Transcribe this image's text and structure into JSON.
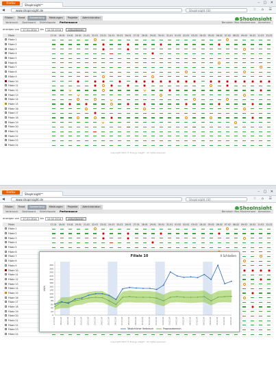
{
  "browser": {
    "menu_label": "Firefox",
    "tab_title": "ShopInsight™",
    "url": "www.shopinsight.de",
    "search_placeholder": "ShopInsight (SI)",
    "window_controls": "– ▢ ✕"
  },
  "app": {
    "logo": "ShopInsight",
    "nav": [
      "Filialen",
      "Trend",
      "Auswertung",
      "Meldungen",
      "Projekte",
      "Administration"
    ],
    "nav_active": 2,
    "subnav": [
      "Verbrauch",
      "Dashboard",
      "Störfallquote",
      "Performance"
    ],
    "subnav_active": 3,
    "user_label": "Benutzer: Max Mustermann",
    "logout_label": "Abmelden",
    "date_from_label": "anzeigen von",
    "date_from": "17.01.2014",
    "date_to_label": "bis",
    "date_to": "12.02.2014",
    "update_button": "aktualisieren",
    "table_header_name": "Filiale",
    "dates": [
      "17.01",
      "18.01",
      "19.01",
      "20.01",
      "21.01",
      "22.01",
      "23.01",
      "24.01",
      "25.01",
      "26.01",
      "27.01",
      "28.01",
      "29.01",
      "30.01",
      "31.01",
      "01.02",
      "02.02",
      "03.02",
      "04.02",
      "05.02",
      "06.02",
      "07.02",
      "08.02",
      "09.02",
      "10.02",
      "11.02",
      "12.02"
    ],
    "rows": [
      {
        "name": "Filiale 1",
        "flag": "",
        "cells": "gggggwgggggggggggggggwggggg"
      },
      {
        "name": "Filiale 2",
        "flag": "",
        "cells": "ggggggcggcgggcggggggcgggggg"
      },
      {
        "name": "Filiale 3",
        "flag": "",
        "cells": "ggggggcggcgggggggggggggwggg"
      },
      {
        "name": "Filiale 4",
        "flag": "",
        "cells": "gggggggrggggcgggggggggggggg"
      },
      {
        "name": "Filiale 5",
        "flag": "",
        "cells": "ggggggggggggggggggggggggggg"
      },
      {
        "name": "Filiale 6",
        "flag": "",
        "cells": "ggggggggggggggggggggwgggggg"
      },
      {
        "name": "Filiale 7",
        "flag": "",
        "cells": "gggggggggggggggggggggggggwg"
      },
      {
        "name": "Filiale 8",
        "flag": "",
        "cells": "ggggggggggggggggwggggggwggg"
      },
      {
        "name": "Filiale 9",
        "flag": "",
        "cells": "ggggggwgggggwgggggggggggggg"
      },
      {
        "name": "Filiale 10",
        "flag": "red",
        "cells": "gggcgccgcgccccccccgcccccccc"
      },
      {
        "name": "Filiale 11",
        "flag": "",
        "cells": "gggggcwcgcgcgggggggwgcggggg"
      },
      {
        "name": "Filiale 12",
        "flag": "",
        "cells": "ggugggwgggguggcggggggggggcg"
      },
      {
        "name": "Filiale 13",
        "flag": "",
        "cells": "gggugggggggggwgggggggggwggg"
      },
      {
        "name": "Filiale 14",
        "flag": "",
        "cells": "gggwgwgugggggggggwgggwggggg"
      },
      {
        "name": "Filiale 15",
        "flag": "orange",
        "cells": "ggcgcggwgcgcggggcgggcgggcgg"
      },
      {
        "name": "Filiale 16",
        "flag": "",
        "cells": "ggggwggggggwgggggggggggwggg"
      },
      {
        "name": "Filiale 17",
        "flag": "",
        "cells": "gggggcggggggggggggggggggggg"
      },
      {
        "name": "Filiale 18",
        "flag": "",
        "cells": "gggwgwgcggggggggwggwggggcgg"
      },
      {
        "name": "Filiale 19",
        "flag": "",
        "cells": "ggggggugggggggggggggggwgggg"
      },
      {
        "name": "Filiale 20",
        "flag": "",
        "cells": "gggggggggrgggggggrggggggggg"
      },
      {
        "name": "Filiale 21",
        "flag": "",
        "cells": "gggggrggggggggggggggggggggg"
      },
      {
        "name": "Filiale 22",
        "flag": "",
        "cells": "ggggggggggggggggggggggggggg"
      },
      {
        "name": "Filiale 23",
        "flag": "",
        "cells": "ggggggggggggggggggggggggggg"
      },
      {
        "name": "Filiale 24",
        "flag": "",
        "cells": "ggggggggggggggggggggggggggg"
      }
    ],
    "footer": "Copyright 2014 © Energy Insight · All rights reserved"
  },
  "modal": {
    "title": "Filiale 10",
    "close_label": "X Schließen"
  },
  "chart_data": {
    "type": "line",
    "title": "Filiale 10",
    "ylabel": "kWh",
    "ylim": [
      0,
      300
    ],
    "yticks": [
      0,
      20,
      40,
      60,
      80,
      100,
      120,
      140,
      160,
      180,
      200,
      220,
      240,
      260,
      280
    ],
    "x": [
      "17.01.14",
      "18.01.14",
      "19.01.14",
      "20.01.14",
      "21.01.14",
      "22.01.14",
      "23.01.14",
      "24.01.14",
      "25.01.14",
      "26.01.14",
      "27.01.14",
      "28.01.14",
      "29.01.14",
      "30.01.14",
      "31.01.14",
      "01.02.14",
      "02.02.14",
      "03.02.14",
      "04.02.14",
      "05.02.14",
      "06.02.14",
      "07.02.14",
      "08.02.14",
      "09.02.14",
      "10.02.14",
      "11.02.14",
      "12.02.14"
    ],
    "weekend_bands": [
      [
        "18.01.14",
        "19.01.14"
      ],
      [
        "25.01.14",
        "26.01.14"
      ],
      [
        "01.02.14",
        "02.02.14"
      ],
      [
        "08.02.14",
        "09.02.14"
      ]
    ],
    "series": [
      {
        "name": "Tatsächlicher Verbrauch",
        "color": "#2d6bb8",
        "values": [
          62,
          75,
          66,
          90,
          96,
          112,
          120,
          120,
          110,
          88,
          148,
          155,
          152,
          150,
          150,
          144,
          168,
          242,
          220,
          212,
          215,
          210,
          228,
          200,
          280,
          176,
          190
        ]
      },
      {
        "name": "Prognosebereich",
        "color": "#8cc63f",
        "type": "band",
        "lower": [
          30,
          40,
          40,
          55,
          60,
          70,
          72,
          70,
          55,
          40,
          70,
          72,
          70,
          70,
          70,
          60,
          50,
          70,
          72,
          70,
          68,
          70,
          72,
          55,
          70,
          72,
          70
        ],
        "center": [
          48,
          72,
          72,
          80,
          88,
          96,
          100,
          98,
          80,
          60,
          100,
          104,
          100,
          100,
          100,
          95,
          80,
          100,
          104,
          100,
          100,
          100,
          104,
          80,
          100,
          104,
          105
        ],
        "upper": [
          60,
          100,
          100,
          112,
          120,
          130,
          135,
          135,
          115,
          90,
          132,
          138,
          135,
          135,
          135,
          130,
          115,
          132,
          138,
          134,
          135,
          135,
          138,
          115,
          135,
          138,
          140
        ]
      }
    ],
    "legend": "bottom-center"
  }
}
